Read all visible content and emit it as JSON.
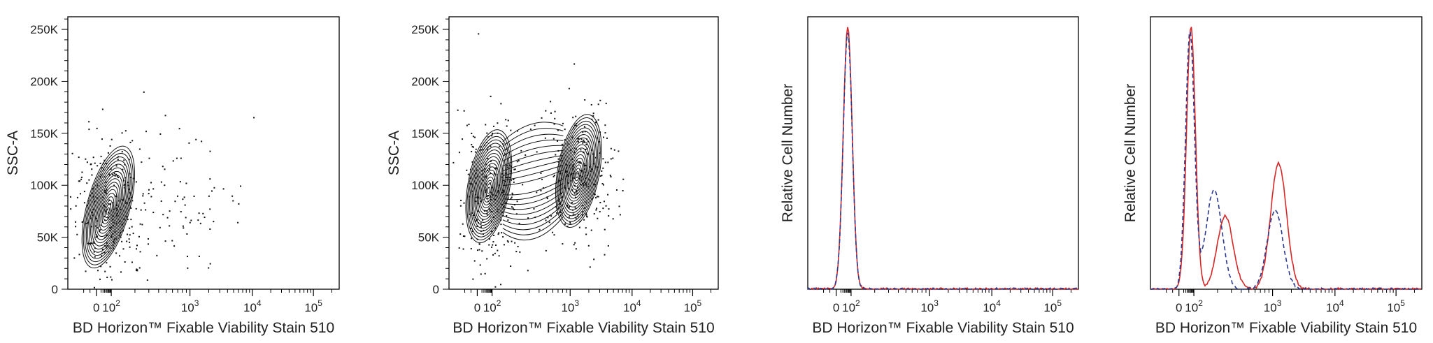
{
  "colors": {
    "axis": "#000000",
    "contour": "#111111",
    "sample": "#d62728",
    "control": "#2b3a8f"
  },
  "x_axis": {
    "label": "BD Horizon™ Fixable Viability Stain 510",
    "ticks": [
      {
        "value": 0,
        "base": "0",
        "exp": ""
      },
      {
        "value": 100,
        "base": "10",
        "exp": "2"
      },
      {
        "value": 1000,
        "base": "10",
        "exp": "3"
      },
      {
        "value": 10000,
        "base": "10",
        "exp": "4"
      },
      {
        "value": 100000,
        "base": "10",
        "exp": "5"
      }
    ]
  },
  "chart_data": [
    {
      "type": "scatter",
      "subtype": "contour",
      "xlabel": "BD Horizon™ Fixable Viability Stain 510",
      "ylabel": "SSC-A",
      "xscale": "biexponential",
      "ylim": [
        0,
        262144
      ],
      "yticks": [
        "0",
        "50K",
        "100K",
        "150K",
        "200K",
        "250K"
      ],
      "populations": [
        {
          "x_center": 60,
          "y_center": 75000,
          "share": "main"
        },
        {
          "x_center": 700,
          "y_center": 90000,
          "share": "sparse"
        }
      ]
    },
    {
      "type": "scatter",
      "subtype": "contour",
      "xlabel": "BD Horizon™ Fixable Viability Stain 510",
      "ylabel": "SSC-A",
      "xscale": "biexponential",
      "ylim": [
        0,
        262144
      ],
      "yticks": [
        "0",
        "50K",
        "100K",
        "150K",
        "200K",
        "250K"
      ],
      "populations": [
        {
          "x_center": 60,
          "y_center": 95000,
          "share": "main"
        },
        {
          "x_center": 1300,
          "y_center": 110000,
          "share": "main"
        }
      ]
    },
    {
      "type": "line",
      "subtype": "histogram",
      "xlabel": "BD Horizon™ Fixable Viability Stain 510",
      "ylabel": "Relative Cell Number",
      "xscale": "biexponential",
      "series": [
        {
          "style": "solid",
          "peaks": [
            {
              "x": 60,
              "height": 1.0
            }
          ]
        },
        {
          "style": "dashed",
          "peaks": [
            {
              "x": 60,
              "height": 0.98
            }
          ]
        }
      ]
    },
    {
      "type": "line",
      "subtype": "histogram",
      "xlabel": "BD Horizon™ Fixable Viability Stain 510",
      "ylabel": "Relative Cell Number",
      "xscale": "biexponential",
      "series": [
        {
          "style": "solid",
          "peaks": [
            {
              "x": 65,
              "height": 1.0
            },
            {
              "x": 250,
              "height": 0.28
            },
            {
              "x": 1250,
              "height": 0.48
            }
          ]
        },
        {
          "style": "dashed",
          "peaks": [
            {
              "x": 55,
              "height": 0.98
            },
            {
              "x": 180,
              "height": 0.38
            },
            {
              "x": 1100,
              "height": 0.3
            }
          ]
        }
      ]
    }
  ]
}
